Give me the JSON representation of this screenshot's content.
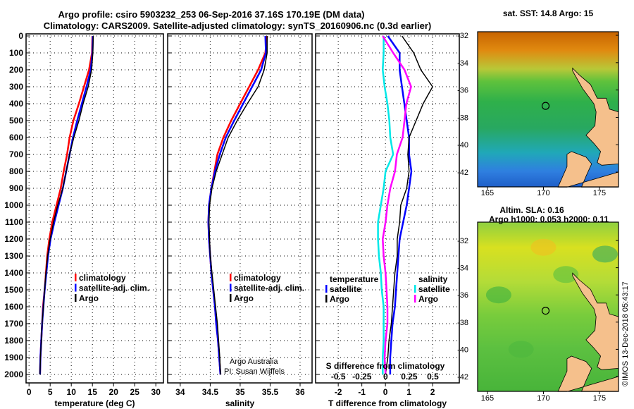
{
  "title_line1": "Argo profile: csiro 5903232_253 06-Sep-2016 37.16S 170.19E (DM data)",
  "title_line2": "Climatology: CARS2009. Satellite-adjusted climatology: synTS_20160906.nc (0.3d earlier)",
  "credit": "©IMOS 13-Dec-2018 05:43:17",
  "colors": {
    "climatology": "#ff0000",
    "satellite": "#0000ff",
    "argo": "#000000",
    "sal_satellite": "#00e8e8",
    "sal_argo": "#ff00ff",
    "land": "#f5c08c"
  },
  "chart_data": [
    {
      "type": "line",
      "id": "temperature",
      "xlabel": "temperature (deg C)",
      "ylabel": "depth",
      "xlim": [
        -0.7,
        31.8
      ],
      "ylim": [
        2050,
        0
      ],
      "xticks": [
        0,
        5,
        10,
        15,
        20,
        25,
        30
      ],
      "yticks": [
        0,
        100,
        200,
        300,
        400,
        500,
        600,
        700,
        800,
        900,
        1000,
        1100,
        1200,
        1300,
        1400,
        1500,
        1600,
        1700,
        1800,
        1900,
        2000
      ],
      "grid": true,
      "legend": [
        "climatology",
        "satellite-adj. clim.",
        "Argo"
      ],
      "depth": [
        0,
        100,
        200,
        300,
        400,
        500,
        600,
        700,
        800,
        900,
        1000,
        1100,
        1200,
        1300,
        1400,
        1500,
        1600,
        1700,
        1800,
        1900,
        2000
      ],
      "series": [
        {
          "name": "climatology",
          "values": [
            15.0,
            14.9,
            14.2,
            13.0,
            11.8,
            10.5,
            9.6,
            9.0,
            8.2,
            7.5,
            6.5,
            5.5,
            4.8,
            4.3,
            4.0,
            3.7,
            3.3,
            3.1,
            2.9,
            2.7,
            2.6
          ]
        },
        {
          "name": "satellite-adj. clim.",
          "values": [
            15.1,
            15.0,
            14.6,
            13.6,
            12.5,
            11.4,
            10.4,
            9.6,
            8.8,
            8.0,
            7.0,
            6.0,
            5.1,
            4.5,
            4.1,
            3.7,
            3.4,
            3.1,
            2.9,
            2.7,
            2.6
          ]
        },
        {
          "name": "Argo",
          "values": [
            15.2,
            15.1,
            14.8,
            14.0,
            12.8,
            11.8,
            10.6,
            9.6,
            8.8,
            8.0,
            6.8,
            5.8,
            5.0,
            4.4,
            4.0,
            3.7,
            3.4,
            3.1,
            2.9,
            2.7,
            2.6
          ]
        }
      ],
      "annotations": []
    },
    {
      "type": "line",
      "id": "salinity",
      "xlabel": "salinity",
      "xlim": [
        33.79,
        36.2
      ],
      "ylim": [
        2050,
        0
      ],
      "xticks": [
        34,
        34.5,
        35,
        35.5,
        36
      ],
      "xticklabels": [
        "34",
        "34.5",
        "35",
        "35.5",
        "36"
      ],
      "grid": true,
      "legend": [
        "climatology",
        "satellite-adj. clim.",
        "Argo"
      ],
      "depth": [
        0,
        100,
        200,
        300,
        400,
        500,
        600,
        700,
        800,
        900,
        1000,
        1100,
        1200,
        1300,
        1400,
        1500,
        1600,
        1700,
        1800,
        1900,
        2000
      ],
      "series": [
        {
          "name": "climatology",
          "values": [
            35.45,
            35.42,
            35.3,
            35.15,
            35.0,
            34.85,
            34.72,
            34.62,
            34.57,
            34.52,
            34.48,
            34.47,
            34.48,
            34.5,
            34.52,
            34.55,
            34.58,
            34.6,
            34.63,
            34.65,
            34.67
          ]
        },
        {
          "name": "satellite-adj. clim.",
          "values": [
            35.42,
            35.43,
            35.35,
            35.2,
            35.05,
            34.9,
            34.76,
            34.66,
            34.58,
            34.52,
            34.48,
            34.47,
            34.48,
            34.5,
            34.52,
            34.55,
            34.58,
            34.6,
            34.63,
            34.65,
            34.67
          ]
        },
        {
          "name": "Argo",
          "values": [
            35.45,
            35.45,
            35.4,
            35.3,
            35.12,
            34.95,
            34.8,
            34.7,
            34.6,
            34.53,
            34.49,
            34.48,
            34.49,
            34.5,
            34.53,
            34.56,
            34.59,
            34.62,
            34.64,
            34.66,
            34.67
          ]
        }
      ],
      "annotations": [
        "Argo Australia",
        "PI: Susan Wijffels"
      ]
    },
    {
      "type": "line",
      "id": "difference",
      "xlabel": "T difference from climatology",
      "x2label": "S difference from climatology",
      "xlim": [
        -2.96,
        3.13
      ],
      "x2lim": [
        -0.74,
        0.78
      ],
      "ylim": [
        2050,
        0
      ],
      "xticks": [
        -2,
        -1,
        0,
        1,
        2
      ],
      "x2ticks": [
        -0.5,
        -0.25,
        0,
        0.25,
        0.5
      ],
      "x2ticklabels": [
        "-0.5",
        "-0.25",
        "0",
        "0.25",
        "0.5"
      ],
      "grid": true,
      "legend_temperature": {
        "title": "temperature",
        "items": [
          "satellite",
          "Argo"
        ]
      },
      "legend_salinity": {
        "title": "salinity",
        "items": [
          "satellite",
          "Argo"
        ]
      },
      "depth": [
        0,
        100,
        200,
        300,
        400,
        500,
        600,
        700,
        800,
        900,
        1000,
        1100,
        1200,
        1300,
        1400,
        1500,
        1600,
        1700,
        1800,
        1900,
        2000
      ],
      "series": [
        {
          "name": "T satellite",
          "axis": "T",
          "values": [
            0.1,
            0.6,
            0.6,
            0.7,
            0.8,
            0.9,
            1.0,
            1.0,
            1.1,
            1.0,
            0.9,
            0.75,
            0.6,
            0.55,
            0.5,
            0.45,
            0.4,
            0.3,
            0.25,
            0.2,
            0.2
          ]
        },
        {
          "name": "T Argo",
          "axis": "T",
          "values": [
            0.7,
            1.2,
            1.5,
            2.0,
            1.6,
            1.3,
            1.0,
            0.95,
            1.0,
            0.9,
            0.65,
            0.6,
            0.5,
            0.5,
            0.4,
            0.35,
            0.3,
            0.25,
            0.15,
            0.1,
            0.0
          ]
        },
        {
          "name": "S satellite",
          "axis": "S",
          "values": [
            -0.02,
            -0.02,
            -0.03,
            -0.01,
            0.02,
            0.04,
            0.05,
            0.08,
            0.0,
            -0.02,
            -0.05,
            -0.08,
            -0.08,
            -0.07,
            -0.05,
            -0.04,
            -0.02,
            -0.02,
            -0.02,
            -0.03,
            -0.03
          ]
        },
        {
          "name": "S Argo",
          "axis": "S",
          "values": [
            -0.03,
            0.08,
            0.2,
            0.27,
            0.22,
            0.2,
            0.18,
            0.12,
            0.1,
            0.05,
            0.02,
            0.0,
            -0.03,
            -0.02,
            0.0,
            0.01,
            0.02,
            0.02,
            0.0,
            -0.01,
            0.0
          ]
        }
      ]
    },
    {
      "type": "heatmap",
      "id": "sst-map",
      "title": "sat. SST: 14.8 Argo: 15",
      "xlim": [
        164.12,
        176.7
      ],
      "ylim": [
        -43.08,
        -31.74
      ],
      "xticks": [
        165,
        170,
        175
      ],
      "yticks": [
        -32,
        -34,
        -36,
        -38,
        -40,
        -42
      ],
      "profile_location": [
        170.19,
        -37.16
      ]
    },
    {
      "type": "heatmap",
      "id": "sla-map",
      "title": "Altim. SLA: 0.16",
      "subtitle": "Argo h1000: 0.053 h2000: 0.11",
      "xlim": [
        164.12,
        176.7
      ],
      "ylim": [
        -43.09,
        -30.65
      ],
      "xticks": [
        165,
        170,
        175
      ],
      "yticks": [
        -32,
        -34,
        -36,
        -38,
        -40,
        -42
      ],
      "profile_location": [
        170.19,
        -37.16
      ]
    }
  ]
}
